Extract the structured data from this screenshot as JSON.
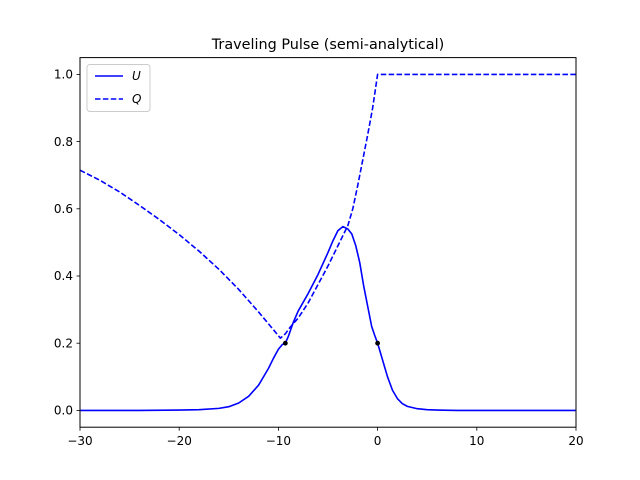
{
  "chart_data": {
    "type": "line",
    "title": "Traveling Pulse (semi-analytical)",
    "xlabel": "",
    "ylabel": "",
    "xlim": [
      -30,
      20
    ],
    "ylim": [
      -0.05,
      1.05
    ],
    "xticks": [
      -30,
      -20,
      -10,
      0,
      10,
      20
    ],
    "xtick_labels": [
      "−30",
      "−20",
      "−10",
      "0",
      "10",
      "20"
    ],
    "yticks": [
      0.0,
      0.2,
      0.4,
      0.6,
      0.8,
      1.0
    ],
    "ytick_labels": [
      "0.0",
      "0.2",
      "0.4",
      "0.6",
      "0.8",
      "1.0"
    ],
    "grid": false,
    "legend_position": "upper-left",
    "series": [
      {
        "name": "U",
        "style": "solid",
        "color": "#0000ff",
        "x": [
          -30,
          -24,
          -20,
          -18,
          -16,
          -15,
          -14,
          -13,
          -12,
          -11,
          -10.5,
          -10,
          -9.6,
          -9.3,
          -9,
          -8.5,
          -8,
          -7,
          -6,
          -5,
          -4.5,
          -4,
          -3.5,
          -3,
          -2.6,
          -2.2,
          -1.8,
          -1.4,
          -1,
          -0.6,
          -0.3,
          0,
          0.3,
          0.6,
          1,
          1.5,
          2,
          2.5,
          3,
          4,
          5,
          6,
          8,
          10,
          15,
          20
        ],
        "y": [
          0.0,
          0.0,
          0.001,
          0.002,
          0.006,
          0.011,
          0.022,
          0.042,
          0.075,
          0.125,
          0.155,
          0.182,
          0.196,
          0.2,
          0.22,
          0.262,
          0.296,
          0.348,
          0.405,
          0.47,
          0.505,
          0.535,
          0.547,
          0.54,
          0.525,
          0.49,
          0.44,
          0.37,
          0.31,
          0.25,
          0.224,
          0.2,
          0.17,
          0.14,
          0.1,
          0.06,
          0.035,
          0.02,
          0.012,
          0.005,
          0.002,
          0.001,
          0.0,
          0.0,
          0.0,
          0.0
        ]
      },
      {
        "name": "Q",
        "style": "dashed",
        "color": "#0000ff",
        "x": [
          -30,
          -28,
          -26,
          -24,
          -22,
          -20,
          -18,
          -16,
          -14,
          -12,
          -10.5,
          -9.8,
          -9.3,
          -8.8,
          -8,
          -7,
          -6,
          -5,
          -4,
          -3,
          -2.5,
          -2,
          -1.5,
          -1,
          -0.5,
          0,
          5,
          10,
          15,
          20
        ],
        "y": [
          0.715,
          0.685,
          0.65,
          0.61,
          0.568,
          0.523,
          0.474,
          0.42,
          0.36,
          0.293,
          0.24,
          0.215,
          0.228,
          0.248,
          0.275,
          0.32,
          0.375,
          0.43,
          0.49,
          0.55,
          0.6,
          0.67,
          0.745,
          0.82,
          0.9,
          1.0,
          1.0,
          1.0,
          1.0,
          1.0
        ]
      }
    ],
    "markers": {
      "color": "#000000",
      "x": [
        -9.3,
        0
      ],
      "y": [
        0.2,
        0.2
      ]
    }
  }
}
